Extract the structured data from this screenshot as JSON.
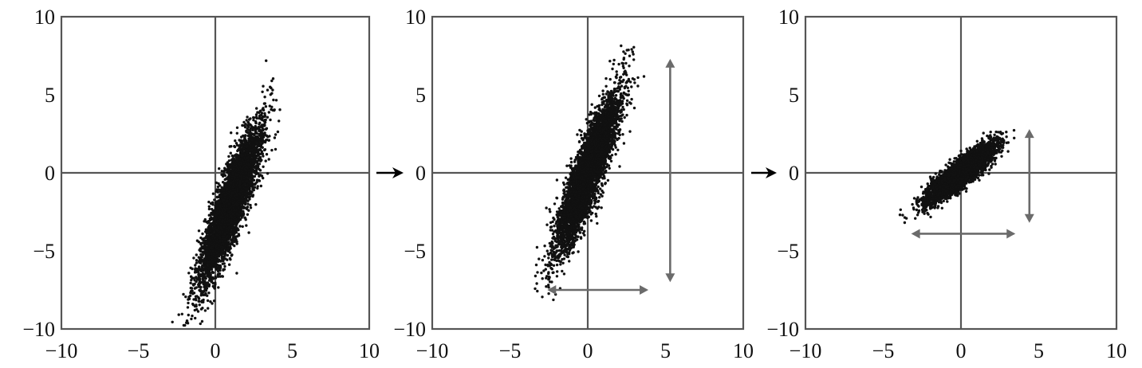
{
  "chart_data": [
    {
      "type": "scatter",
      "title": "",
      "xlabel": "",
      "ylabel": "",
      "xlim": [
        -10,
        10
      ],
      "ylim": [
        -10,
        10
      ],
      "xticks": [
        -10,
        -5,
        0,
        5,
        10
      ],
      "yticks": [
        -10,
        -5,
        0,
        5,
        10
      ],
      "xtick_labels": [
        "−10",
        "−5",
        "0",
        "5",
        "10"
      ],
      "ytick_labels": [
        "−10",
        "−5",
        "0",
        "5",
        "10"
      ],
      "grid": false,
      "zero_lines": true,
      "distribution": {
        "mean": [
          1.0,
          -2.0
        ],
        "principal_direction_deg": 70,
        "sd_major": 2.6,
        "sd_minor": 0.45,
        "x_range_approx": [
          -3.2,
          4.5
        ],
        "y_range_approx": [
          -9.2,
          7.6
        ],
        "n_points_approx": 5000
      },
      "arrows": []
    },
    {
      "type": "scatter",
      "title": "",
      "xlabel": "",
      "ylabel": "",
      "xlim": [
        -10,
        10
      ],
      "ylim": [
        -10,
        10
      ],
      "xticks": [
        -10,
        -5,
        0,
        5,
        10
      ],
      "yticks": [
        -10,
        -5,
        0,
        5,
        10
      ],
      "xtick_labels": [
        "−10",
        "−5",
        "0",
        "5",
        "10"
      ],
      "ytick_labels": [
        "−10",
        "−5",
        "0",
        "5",
        "10"
      ],
      "grid": false,
      "zero_lines": true,
      "distribution": {
        "mean": [
          0.0,
          0.0
        ],
        "principal_direction_deg": 70,
        "sd_major": 2.6,
        "sd_minor": 0.45,
        "x_range_approx": [
          -4.5,
          3.5
        ],
        "y_range_approx": [
          -8.6,
          9.2
        ],
        "n_points_approx": 5000
      },
      "arrows": [
        {
          "orientation": "horizontal",
          "from": [
            -2.6,
            -7.5
          ],
          "to": [
            3.9,
            -7.5
          ],
          "double_headed": true
        },
        {
          "orientation": "vertical",
          "from": [
            5.3,
            -7.0
          ],
          "to": [
            5.3,
            7.3
          ],
          "double_headed": true
        }
      ]
    },
    {
      "type": "scatter",
      "title": "",
      "xlabel": "",
      "ylabel": "",
      "xlim": [
        -10,
        10
      ],
      "ylim": [
        -10,
        10
      ],
      "xticks": [
        -10,
        -5,
        0,
        5,
        10
      ],
      "yticks": [
        -10,
        -5,
        0,
        5,
        10
      ],
      "xtick_labels": [
        "−10",
        "−5",
        "0",
        "5",
        "10"
      ],
      "ytick_labels": [
        "−10",
        "−5",
        "0",
        "5",
        "10"
      ],
      "grid": false,
      "zero_lines": true,
      "distribution": {
        "mean": [
          0.0,
          0.0
        ],
        "principal_direction_deg": 40,
        "sd_major": 1.3,
        "sd_minor": 0.33,
        "x_range_approx": [
          -3.4,
          2.8
        ],
        "y_range_approx": [
          -2.9,
          3.4
        ],
        "n_points_approx": 5000
      },
      "arrows": [
        {
          "orientation": "horizontal",
          "from": [
            -3.2,
            -3.9
          ],
          "to": [
            3.5,
            -3.9
          ],
          "double_headed": true
        },
        {
          "orientation": "vertical",
          "from": [
            4.4,
            -3.2
          ],
          "to": [
            4.4,
            2.8
          ],
          "double_headed": true
        }
      ]
    }
  ],
  "flow_arrows": [
    {
      "from_panel": 1,
      "to_panel": 2
    },
    {
      "from_panel": 2,
      "to_panel": 3
    }
  ]
}
